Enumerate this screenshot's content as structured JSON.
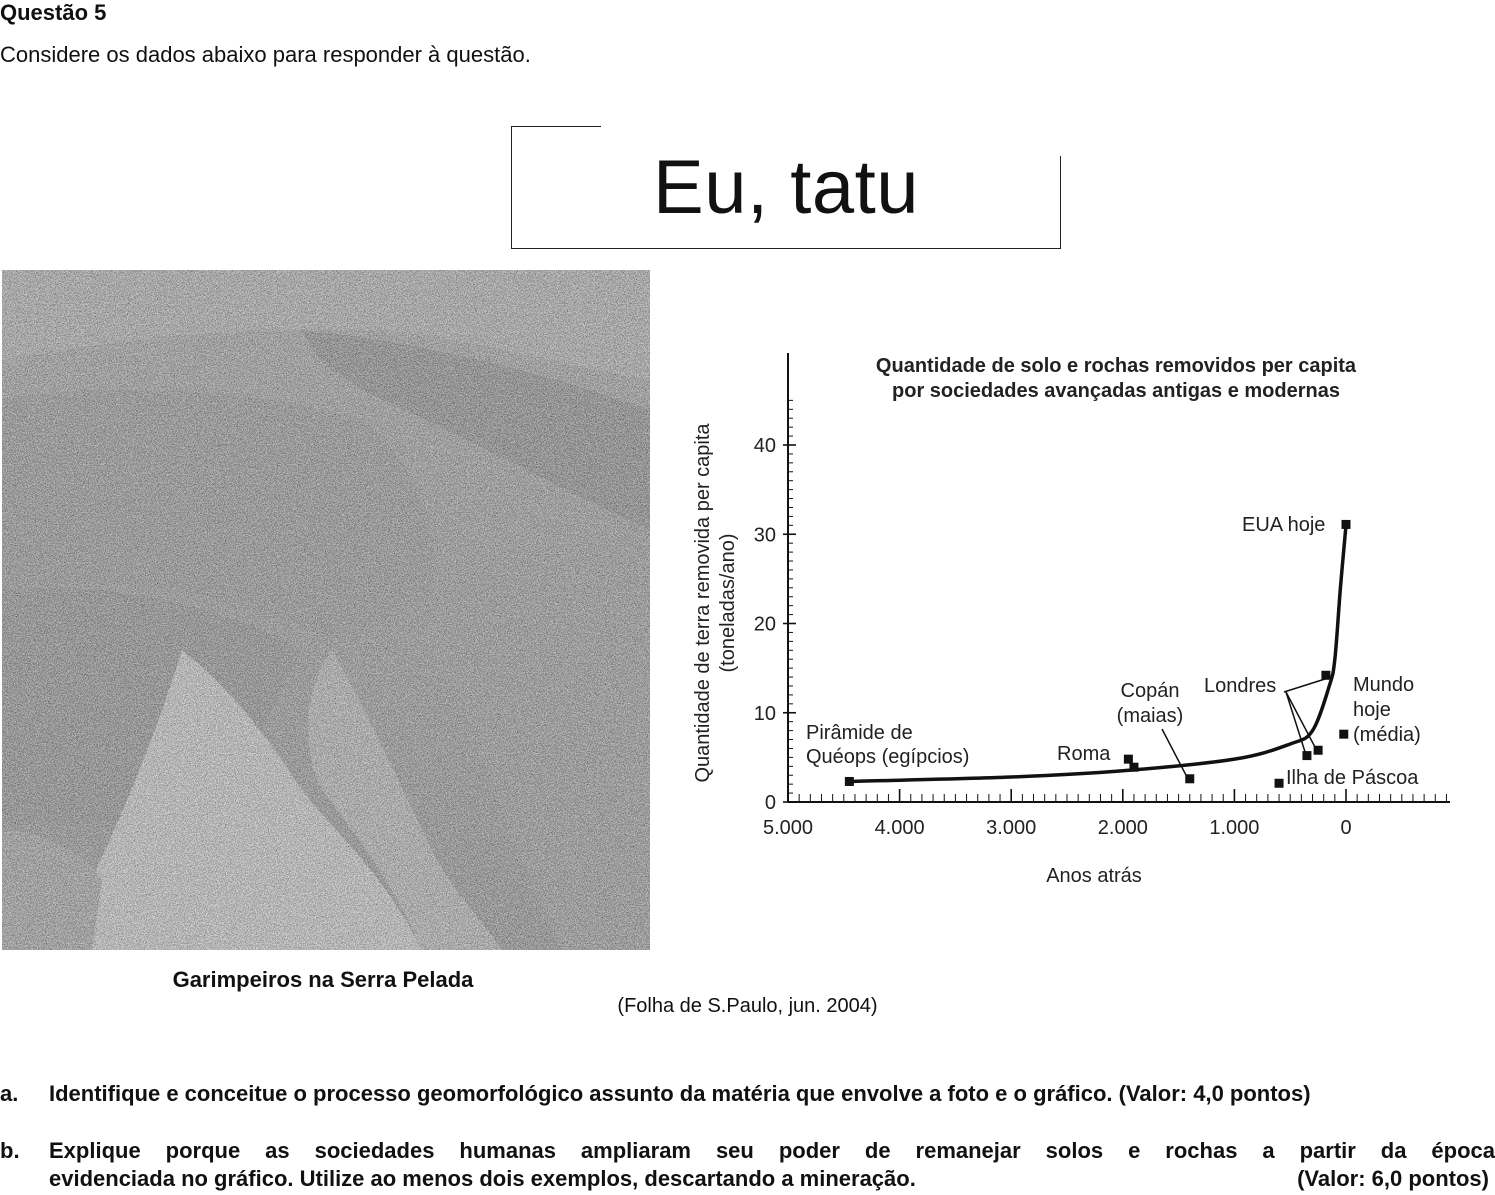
{
  "header": {
    "question": "Questão 5",
    "intro": "Considere os dados abaixo para responder à questão."
  },
  "article": {
    "title": "Eu, tatu",
    "photo_caption": "Garimpeiros na Serra Pelada",
    "source": "(Folha de S.Paulo, jun. 2004)"
  },
  "chart_data": {
    "type": "line",
    "title_line1": "Quantidade de solo e rochas removidos per capita",
    "title_line2": "por sociedades avançadas antigas e modernas",
    "xlabel": "Anos atrás",
    "ylabel_line1": "Quantidade de terra removida per capita",
    "ylabel_line2": "(toneladas/ano)",
    "xlim": [
      5000,
      -500
    ],
    "ylim": [
      0,
      50
    ],
    "x_ticks": [
      5000,
      4000,
      3000,
      2000,
      1000,
      0
    ],
    "x_tick_labels": [
      "5.000",
      "4.000",
      "3.000",
      "2.000",
      "1.000",
      "0"
    ],
    "y_ticks": [
      0,
      10,
      20,
      30,
      40
    ],
    "y_tick_labels": [
      "0",
      "10",
      "20",
      "30",
      "40"
    ],
    "curve": [
      [
        4450,
        2.3
      ],
      [
        3000,
        2.8
      ],
      [
        2000,
        3.5
      ],
      [
        1000,
        4.8
      ],
      [
        500,
        6.5
      ],
      [
        300,
        8
      ],
      [
        150,
        13
      ],
      [
        100,
        16
      ],
      [
        50,
        24
      ],
      [
        0,
        31
      ]
    ],
    "points": [
      {
        "x": 4450,
        "y": 2.3
      },
      {
        "x": 1950,
        "y": 4.8
      },
      {
        "x": 1900,
        "y": 3.9
      },
      {
        "x": 1400,
        "y": 2.6
      },
      {
        "x": 600,
        "y": 2.1
      },
      {
        "x": 350,
        "y": 5.2
      },
      {
        "x": 250,
        "y": 5.8
      },
      {
        "x": 180,
        "y": 14.2
      },
      {
        "x": 20,
        "y": 7.6
      },
      {
        "x": 0,
        "y": 31.1
      }
    ],
    "annotations": {
      "queops_1": "Pirâmide de",
      "queops_2": "Quéops (egípcios)",
      "roma": "Roma",
      "copan_1": "Copán",
      "copan_2": "(maias)",
      "londres": "Londres",
      "mundo_1": "Mundo",
      "mundo_2": "hoje",
      "mundo_3": "(média)",
      "eua": "EUA hoje",
      "pascoa": "Ilha de Páscoa"
    }
  },
  "questions": {
    "a_letter": "a.",
    "a_text": "Identifique e conceitue o processo geomorfológico assunto da matéria que envolve a foto e o gráfico. (Valor: 4,0 pontos)",
    "b_letter": "b.",
    "b_text_line1": "Explique porque as sociedades humanas ampliaram seu poder de remanejar solos e rochas a partir da época",
    "b_text_line2": "evidenciada no gráfico. Utilize ao menos dois exemplos, descartando a mineração.",
    "b_value": "(Valor:  6,0 pontos)"
  }
}
